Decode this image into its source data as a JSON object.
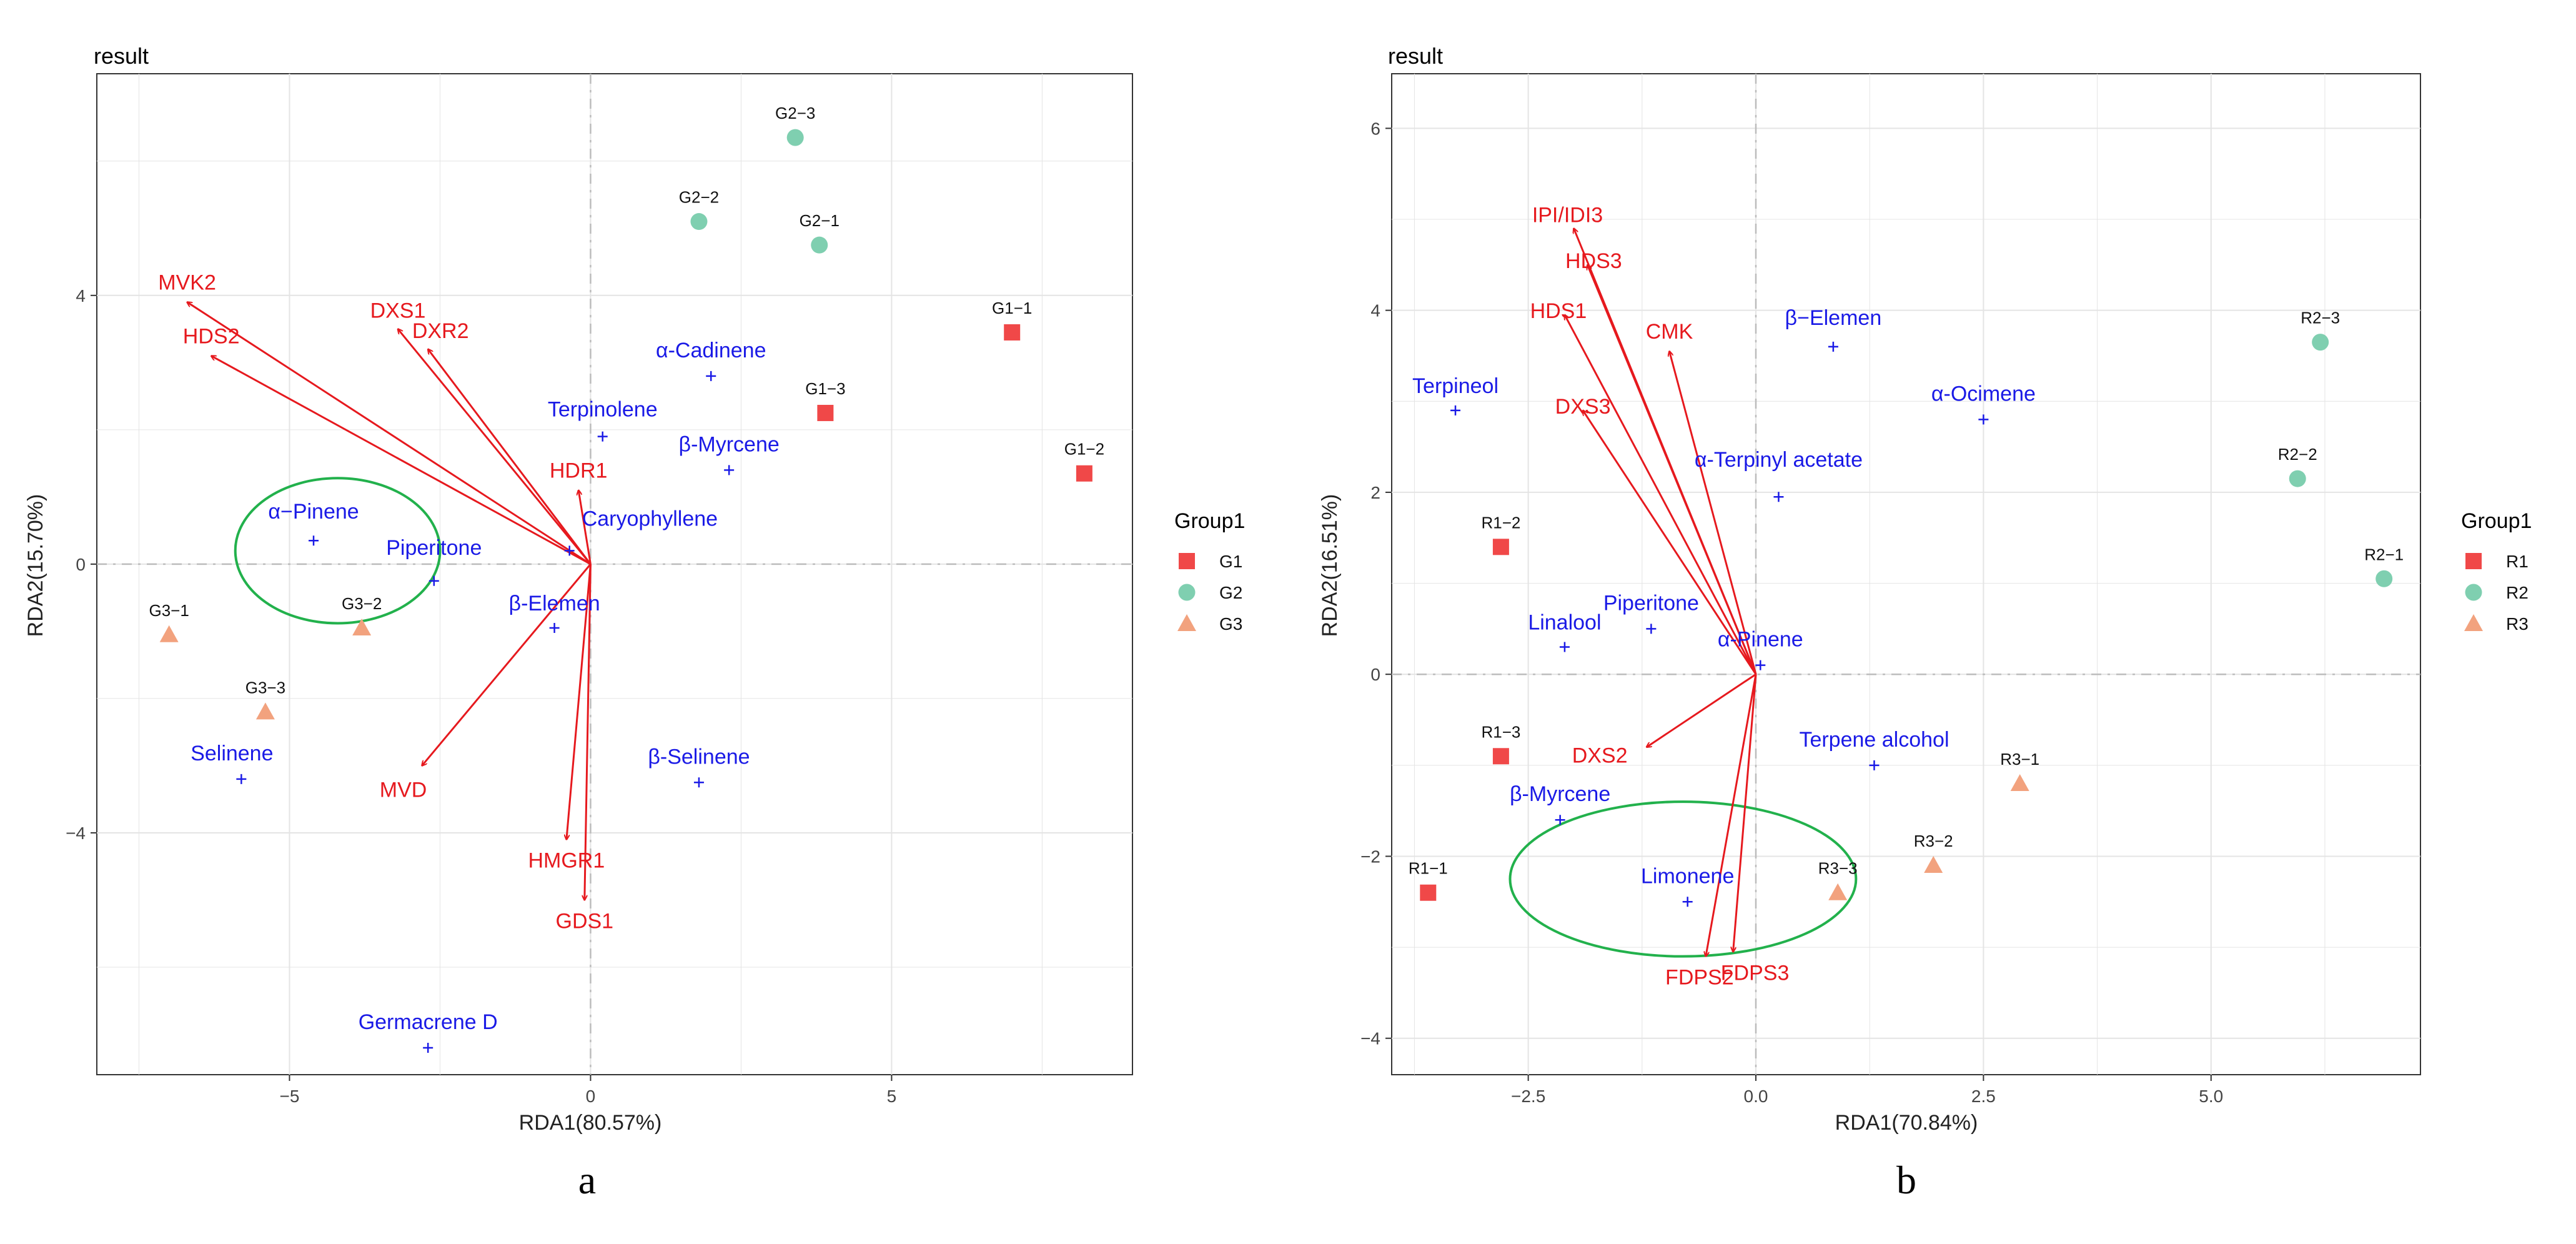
{
  "figure": {
    "colors": {
      "arrow": "#e6191e",
      "variable": "#1a1ae6",
      "group1": "#f04848",
      "group2": "#7fcfb0",
      "group3": "#f2a27e",
      "ellipse": "#22b14c",
      "refline": "#bcbcbc",
      "grid": "#e4e4e4",
      "panel_border": "#333333"
    }
  },
  "chart_data": [
    {
      "type": "scatter",
      "subtype": "RDA biplot",
      "title": "result",
      "caption": "a",
      "xlabel": "RDA1(80.57%)",
      "ylabel": "RDA2(15.70%)",
      "xlim": [
        -8.2,
        9.0
      ],
      "ylim": [
        -7.6,
        7.3
      ],
      "xticks": [
        {
          "v": -5,
          "label": "−5"
        },
        {
          "v": 0,
          "label": "0"
        },
        {
          "v": 5,
          "label": "5"
        }
      ],
      "yticks": [
        {
          "v": -4,
          "label": "−4"
        },
        {
          "v": 0,
          "label": "0"
        },
        {
          "v": 4,
          "label": "4"
        }
      ],
      "legend": {
        "title": "Group1",
        "entries": [
          {
            "key": "G1",
            "label": "G1",
            "shape": "square",
            "color": "#f04848"
          },
          {
            "key": "G2",
            "label": "G2",
            "shape": "circle",
            "color": "#7fcfb0"
          },
          {
            "key": "G3",
            "label": "G3",
            "shape": "triangle",
            "color": "#f2a27e"
          }
        ]
      },
      "samples": [
        {
          "label": "G1−1",
          "group": "G1",
          "x": 7.0,
          "y": 3.45
        },
        {
          "label": "G1−2",
          "group": "G1",
          "x": 8.2,
          "y": 1.35
        },
        {
          "label": "G1−3",
          "group": "G1",
          "x": 3.9,
          "y": 2.25
        },
        {
          "label": "G2−1",
          "group": "G2",
          "x": 3.8,
          "y": 4.75
        },
        {
          "label": "G2−2",
          "group": "G2",
          "x": 1.8,
          "y": 5.1
        },
        {
          "label": "G2−3",
          "group": "G2",
          "x": 3.4,
          "y": 6.35
        },
        {
          "label": "G3−1",
          "group": "G3",
          "x": -7.0,
          "y": -1.05
        },
        {
          "label": "G3−2",
          "group": "G3",
          "x": -3.8,
          "y": -0.95
        },
        {
          "label": "G3−3",
          "group": "G3",
          "x": -5.4,
          "y": -2.2
        }
      ],
      "variables": [
        {
          "label": "α−Pinene",
          "x": -4.6,
          "y": 0.35
        },
        {
          "label": "Piperitone",
          "x": -2.6,
          "y": -0.25
        },
        {
          "label": "Caryophyllene",
          "x": -0.35,
          "y": 0.2
        },
        {
          "label": "β-Elemen",
          "x": -0.6,
          "y": -0.95
        },
        {
          "label": "α-Cadinene",
          "x": 2.0,
          "y": 2.8
        },
        {
          "label": "Terpinolene",
          "x": 0.2,
          "y": 1.9
        },
        {
          "label": "β-Myrcene",
          "x": 2.3,
          "y": 1.4
        },
        {
          "label": "Selinene",
          "x": -5.8,
          "y": -3.2
        },
        {
          "label": "β-Selinene",
          "x": 1.8,
          "y": -3.25
        },
        {
          "label": "Germacrene D",
          "x": -2.7,
          "y": -7.2
        }
      ],
      "arrows": [
        {
          "label": "MVK2",
          "x": -6.7,
          "y": 3.9
        },
        {
          "label": "HDS2",
          "x": -6.3,
          "y": 3.1
        },
        {
          "label": "DXS1",
          "x": -3.2,
          "y": 3.5
        },
        {
          "label": "DXR2",
          "x": -2.7,
          "y": 3.2
        },
        {
          "label": "HDR1",
          "x": -0.2,
          "y": 1.1
        },
        {
          "label": "MVD",
          "x": -2.8,
          "y": -3.0
        },
        {
          "label": "HMGR1",
          "x": -0.4,
          "y": -4.1
        },
        {
          "label": "GDS1",
          "x": -0.1,
          "y": -5.0
        }
      ],
      "ellipse": {
        "cx": -4.2,
        "cy": 0.2,
        "rx": 1.7,
        "ry": 1.08
      }
    },
    {
      "type": "scatter",
      "subtype": "RDA biplot",
      "title": "result",
      "caption": "b",
      "xlabel": "RDA1(70.84%)",
      "ylabel": "RDA2(16.51%)",
      "xlim": [
        -4.0,
        7.3
      ],
      "ylim": [
        -4.4,
        6.6
      ],
      "xticks": [
        {
          "v": -2.5,
          "label": "−2.5"
        },
        {
          "v": 0,
          "label": "0.0"
        },
        {
          "v": 2.5,
          "label": "2.5"
        },
        {
          "v": 5,
          "label": "5.0"
        }
      ],
      "yticks": [
        {
          "v": -4,
          "label": "−4"
        },
        {
          "v": -2,
          "label": "−2"
        },
        {
          "v": 0,
          "label": "0"
        },
        {
          "v": 2,
          "label": "2"
        },
        {
          "v": 4,
          "label": "4"
        },
        {
          "v": 6,
          "label": "6"
        }
      ],
      "legend": {
        "title": "Group1",
        "entries": [
          {
            "key": "R1",
            "label": "R1",
            "shape": "square",
            "color": "#f04848"
          },
          {
            "key": "R2",
            "label": "R2",
            "shape": "circle",
            "color": "#7fcfb0"
          },
          {
            "key": "R3",
            "label": "R3",
            "shape": "triangle",
            "color": "#f2a27e"
          }
        ]
      },
      "samples": [
        {
          "label": "R1−1",
          "group": "R1",
          "x": -3.6,
          "y": -2.4
        },
        {
          "label": "R1−2",
          "group": "R1",
          "x": -2.8,
          "y": 1.4
        },
        {
          "label": "R1−3",
          "group": "R1",
          "x": -2.8,
          "y": -0.9
        },
        {
          "label": "R2−1",
          "group": "R2",
          "x": 6.9,
          "y": 1.05
        },
        {
          "label": "R2−2",
          "group": "R2",
          "x": 5.95,
          "y": 2.15
        },
        {
          "label": "R2−3",
          "group": "R2",
          "x": 6.2,
          "y": 3.65
        },
        {
          "label": "R3−1",
          "group": "R3",
          "x": 2.9,
          "y": -1.2
        },
        {
          "label": "R3−2",
          "group": "R3",
          "x": 1.95,
          "y": -2.1
        },
        {
          "label": "R3−3",
          "group": "R3",
          "x": 0.9,
          "y": -2.4
        }
      ],
      "variables": [
        {
          "label": "β−Elemen",
          "x": 0.85,
          "y": 3.6
        },
        {
          "label": "Terpineol",
          "x": -3.3,
          "y": 2.9
        },
        {
          "label": "α-Ocimene",
          "x": 2.5,
          "y": 2.8
        },
        {
          "label": "α-Terpinyl acetate",
          "x": 0.25,
          "y": 1.95
        },
        {
          "label": "Linalool",
          "x": -2.1,
          "y": 0.3
        },
        {
          "label": "Piperitone",
          "x": -1.15,
          "y": 0.5
        },
        {
          "label": "α-Pinene",
          "x": 0.05,
          "y": 0.1
        },
        {
          "label": "Terpene alcohol",
          "x": 1.3,
          "y": -1.0
        },
        {
          "label": "β-Myrcene",
          "x": -2.15,
          "y": -1.6
        },
        {
          "label": "Limonene",
          "x": -0.75,
          "y": -2.5
        }
      ],
      "arrows": [
        {
          "label": "IPI/IDI3",
          "x": -2.0,
          "y": 4.9
        },
        {
          "label": "HDS3",
          "x": -1.85,
          "y": 4.5
        },
        {
          "label": "HDS1",
          "x": -2.1,
          "y": 3.95
        },
        {
          "label": "CMK",
          "x": -0.95,
          "y": 3.55
        },
        {
          "label": "DXS3",
          "x": -1.9,
          "y": 2.9
        },
        {
          "label": "DXS2",
          "x": -1.2,
          "y": -0.8
        },
        {
          "label": "FDPS2",
          "x": -0.55,
          "y": -3.1
        },
        {
          "label": "FDPS3",
          "x": -0.25,
          "y": -3.05
        }
      ],
      "ellipse": {
        "cx": -0.8,
        "cy": -2.25,
        "rx": 1.9,
        "ry": 0.85
      }
    }
  ]
}
